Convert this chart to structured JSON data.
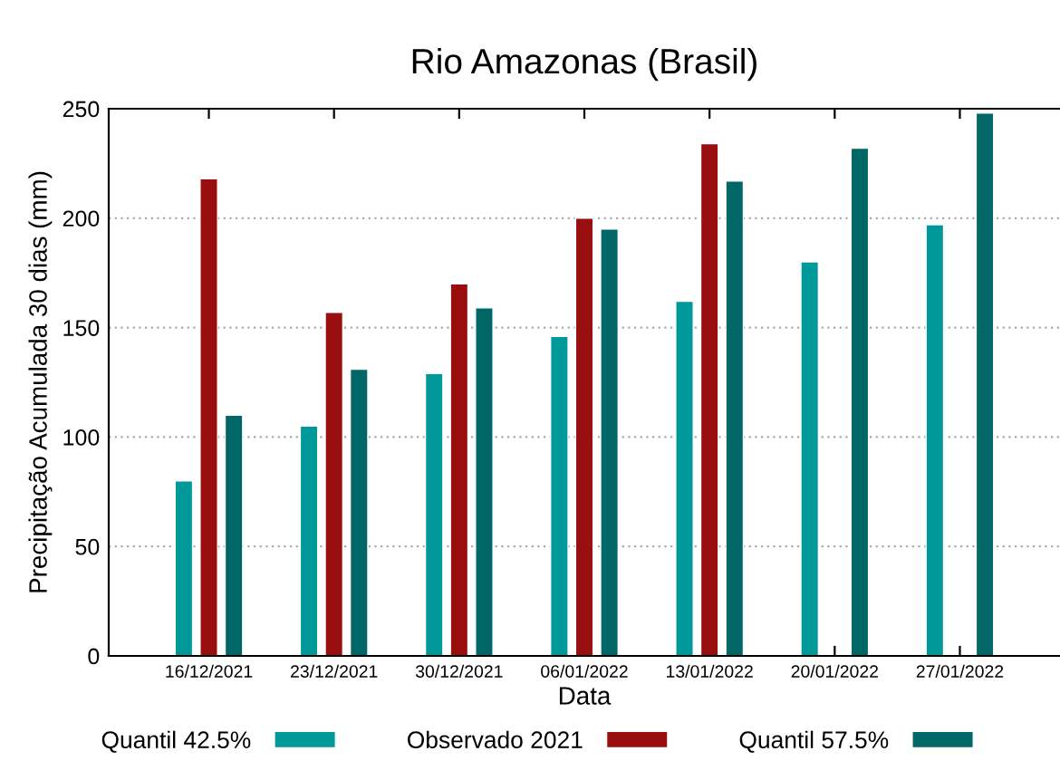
{
  "chart_data": {
    "type": "bar",
    "title": "Rio Amazonas (Brasil)",
    "xlabel": "Data",
    "ylabel": "Precipitação Acumulada 30 dias (mm)",
    "categories": [
      "16/12/2021",
      "23/12/2021",
      "30/12/2021",
      "06/01/2022",
      "13/01/2022",
      "20/01/2022",
      "27/01/2022"
    ],
    "series": [
      {
        "name": "Quantil 42.5%",
        "color": "#009999",
        "values": [
          80,
          105,
          129,
          146,
          162,
          180,
          197
        ]
      },
      {
        "name": "Observado 2021",
        "color": "#990f0f",
        "values": [
          218,
          157,
          170,
          200,
          234,
          null,
          null
        ]
      },
      {
        "name": "Quantil 57.5%",
        "color": "#006666",
        "values": [
          110,
          131,
          159,
          195,
          217,
          232,
          248
        ]
      }
    ],
    "ylim": [
      0,
      250
    ],
    "yticks": [
      0,
      50,
      100,
      150,
      200,
      250
    ],
    "grid": "y",
    "legend": "bottom"
  }
}
